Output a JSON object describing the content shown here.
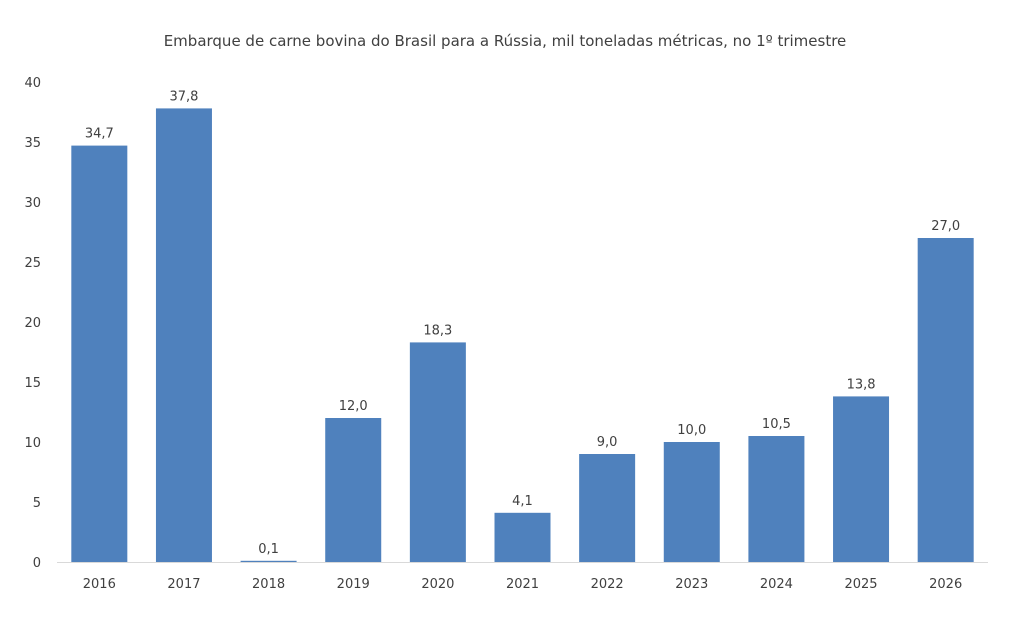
{
  "chart_data": {
    "type": "bar",
    "title": "Embarque de carne bovina do Brasil para a Rússia, mil toneladas métricas, no 1º trimestre",
    "categories": [
      "2016",
      "2017",
      "2018",
      "2019",
      "2020",
      "2021",
      "2022",
      "2023",
      "2024",
      "2025",
      "2026"
    ],
    "values": [
      34.7,
      37.8,
      0.1,
      12.0,
      18.3,
      4.1,
      9.0,
      10.0,
      10.5,
      13.8,
      27.0
    ],
    "data_labels": [
      "34,7",
      "37,8",
      "0,1",
      "12,0",
      "18,3",
      "4,1",
      "9,0",
      "10,0",
      "10,5",
      "13,8",
      "27,0"
    ],
    "xlabel": "",
    "ylabel": "",
    "ylim": [
      0,
      40
    ],
    "yticks": [
      "0",
      "5",
      "10",
      "15",
      "20",
      "25",
      "30",
      "35",
      "40"
    ],
    "grid": false,
    "legend": "none",
    "bar_color": "#4F81BD"
  }
}
